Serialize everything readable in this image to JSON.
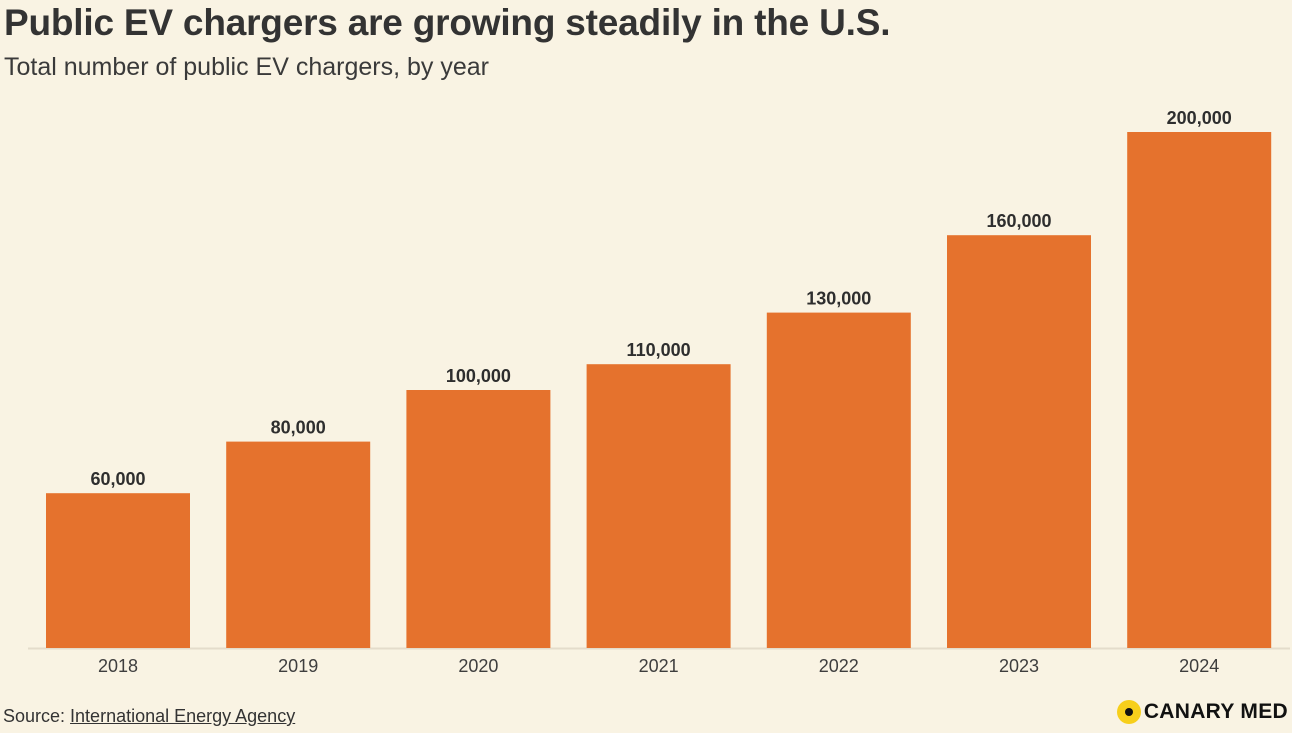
{
  "chart_data": {
    "type": "bar",
    "title": "Public EV chargers are growing steadily in the U.S.",
    "subtitle": "Total number of public EV chargers, by year",
    "categories": [
      "2018",
      "2019",
      "2020",
      "2021",
      "2022",
      "2023",
      "2024"
    ],
    "values": [
      60000,
      80000,
      100000,
      110000,
      130000,
      160000,
      200000
    ],
    "value_labels": [
      "60,000",
      "80,000",
      "100,000",
      "110,000",
      "130,000",
      "160,000",
      "200,000"
    ],
    "xlabel": "",
    "ylabel": "",
    "ylim": [
      0,
      200000
    ],
    "grid": false,
    "legend": "none",
    "bar_color": "#e5722d"
  },
  "source": {
    "prefix": "Source: ",
    "name": "International Energy Agency"
  },
  "brand": {
    "name": "CANARY MED"
  },
  "colors": {
    "background": "#f9f3e3",
    "bar": "#e5722d",
    "brand_dot": "#f7cf1b"
  }
}
